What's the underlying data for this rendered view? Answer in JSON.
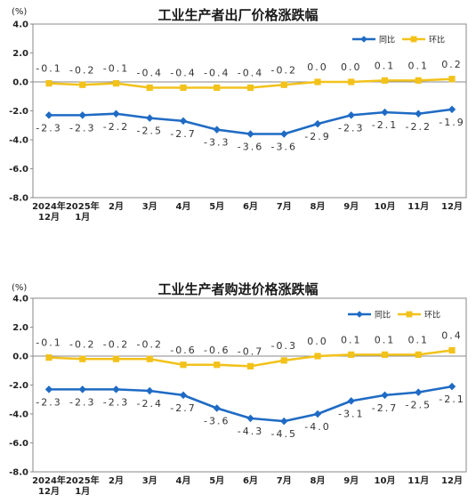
{
  "chart_data": [
    {
      "type": "line",
      "title": "工业生产者出厂价格涨跌幅",
      "unit_label": "(%)",
      "categories": [
        [
          "2024年",
          "12月"
        ],
        [
          "2025年",
          "1月"
        ],
        [
          "2月"
        ],
        [
          "3月"
        ],
        [
          "4月"
        ],
        [
          "5月"
        ],
        [
          "6月"
        ],
        [
          "7月"
        ],
        [
          "8月"
        ],
        [
          "9月"
        ],
        [
          "10月"
        ],
        [
          "11月"
        ],
        [
          "12月"
        ]
      ],
      "ylim": [
        -8.0,
        4.0
      ],
      "yticks": [
        "4.0",
        "2.0",
        "0.0",
        "-2.0",
        "-4.0",
        "-6.0",
        "-8.0"
      ],
      "ytick_values": [
        4,
        2,
        0,
        -2,
        -4,
        -6,
        -8
      ],
      "legend_position": "top-right",
      "series": [
        {
          "name": "同比",
          "color": "#1f6bc4",
          "marker": "diamond",
          "values": [
            -2.3,
            -2.3,
            -2.2,
            -2.5,
            -2.7,
            -3.3,
            -3.6,
            -3.6,
            -2.9,
            -2.3,
            -2.1,
            -2.2,
            -1.9
          ],
          "labels": [
            "-2.3",
            "-2.3",
            "-2.2",
            "-2.5",
            "-2.7",
            "-3.3",
            "-3.6",
            "-3.6",
            "-2.9",
            "-2.3",
            "-2.1",
            "-2.2",
            "-1.9"
          ],
          "label_pos": "below"
        },
        {
          "name": "环比",
          "color": "#f2c21b",
          "marker": "square",
          "values": [
            -0.1,
            -0.2,
            -0.1,
            -0.4,
            -0.4,
            -0.4,
            -0.4,
            -0.2,
            0.0,
            0.0,
            0.1,
            0.1,
            0.2
          ],
          "labels": [
            "-0.1",
            "-0.2",
            "-0.1",
            "-0.4",
            "-0.4",
            "-0.4",
            "-0.4",
            "-0.2",
            "0.0",
            "0.0",
            "0.1",
            "0.1",
            "0.2"
          ],
          "label_pos": "above"
        }
      ]
    },
    {
      "type": "line",
      "title": "工业生产者购进价格涨跌幅",
      "unit_label": "(%)",
      "categories": [
        [
          "2024年",
          "12月"
        ],
        [
          "2025年",
          "1月"
        ],
        [
          "2月"
        ],
        [
          "3月"
        ],
        [
          "4月"
        ],
        [
          "5月"
        ],
        [
          "6月"
        ],
        [
          "7月"
        ],
        [
          "8月"
        ],
        [
          "9月"
        ],
        [
          "10月"
        ],
        [
          "11月"
        ],
        [
          "12月"
        ]
      ],
      "ylim": [
        -8.0,
        4.0
      ],
      "yticks": [
        "4.0",
        "2.0",
        "0.0",
        "-2.0",
        "-4.0",
        "-6.0",
        "-8.0"
      ],
      "ytick_values": [
        4,
        2,
        0,
        -2,
        -4,
        -6,
        -8
      ],
      "legend_position": "top-right",
      "series": [
        {
          "name": "同比",
          "color": "#1f6bc4",
          "marker": "diamond",
          "values": [
            -2.3,
            -2.3,
            -2.3,
            -2.4,
            -2.7,
            -3.6,
            -4.3,
            -4.5,
            -4.0,
            -3.1,
            -2.7,
            -2.5,
            -2.1
          ],
          "labels": [
            "-2.3",
            "-2.3",
            "-2.3",
            "-2.4",
            "-2.7",
            "-3.6",
            "-4.3",
            "-4.5",
            "-4.0",
            "-3.1",
            "-2.7",
            "-2.5",
            "-2.1"
          ],
          "label_pos": "below"
        },
        {
          "name": "环比",
          "color": "#f2c21b",
          "marker": "square",
          "values": [
            -0.1,
            -0.2,
            -0.2,
            -0.2,
            -0.6,
            -0.6,
            -0.7,
            -0.3,
            0.0,
            0.1,
            0.1,
            0.1,
            0.4
          ],
          "labels": [
            "-0.1",
            "-0.2",
            "-0.2",
            "-0.2",
            "-0.6",
            "-0.6",
            "-0.7",
            "-0.3",
            "0.0",
            "0.1",
            "0.1",
            "0.1",
            "0.4"
          ],
          "label_pos": "above"
        }
      ]
    }
  ]
}
